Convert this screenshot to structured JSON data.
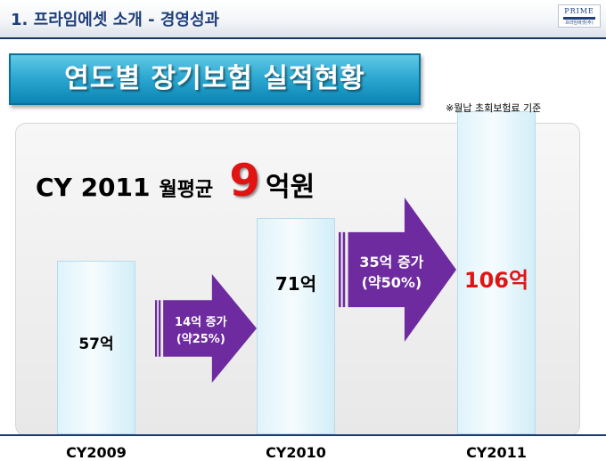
{
  "header": {
    "title": "1. 프라임에셋 소개 - 경영성과",
    "logo_text": "PRIME",
    "logo_sub": "프라임에셋(주)"
  },
  "banner": {
    "title": "연도별 장기보험 실적현황"
  },
  "note": "※월납 초회보험료 기준",
  "headline": {
    "prefix": "CY 2011",
    "label": "월평균",
    "value": "9",
    "unit": "억원"
  },
  "chart_data": {
    "type": "bar",
    "title": "연도별 장기보험 실적현황",
    "categories": [
      "CY2009",
      "CY2010",
      "CY2011"
    ],
    "values": [
      57,
      71,
      106
    ],
    "value_labels": [
      "57억",
      "71억",
      "106억"
    ],
    "unit": "억",
    "ylim": [
      0,
      106
    ],
    "annotations": [
      {
        "from": "CY2009",
        "to": "CY2010",
        "line1": "14억 증가",
        "line2": "(약25%)"
      },
      {
        "from": "CY2010",
        "to": "CY2011",
        "line1": "35억 증가",
        "line2": "(약50%)"
      }
    ],
    "colors": {
      "bar": "#e6f6fc",
      "highlight_label": "#e11414",
      "arrow": "#6d2b9f"
    }
  }
}
